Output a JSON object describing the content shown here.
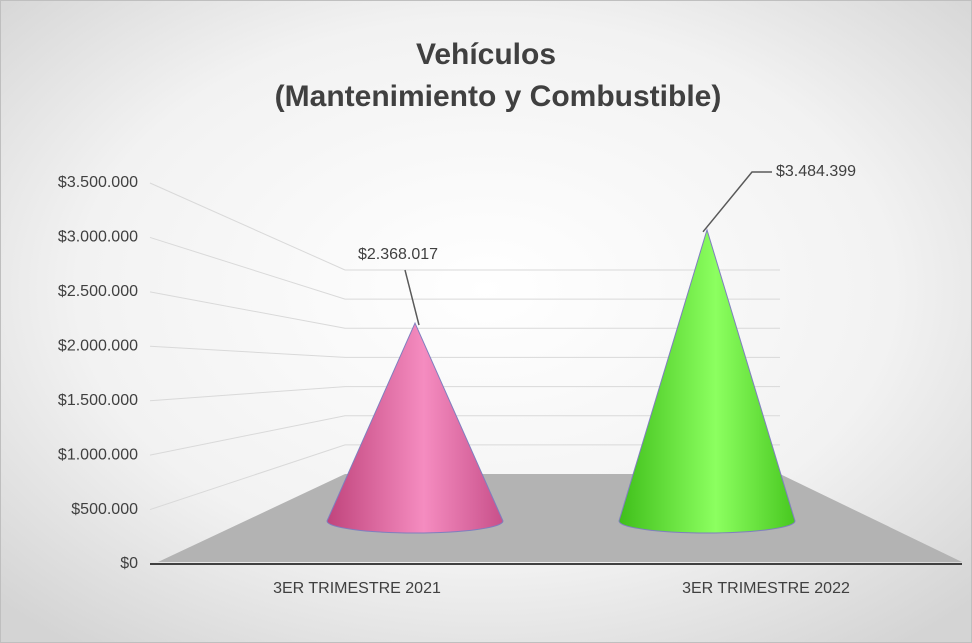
{
  "chart_data": {
    "type": "cone",
    "title": "Vehículos",
    "subtitle": "(Mantenimiento y Combustible)",
    "categories": [
      "3ER TRIMESTRE 2021",
      "3ER TRIMESTRE 2022"
    ],
    "values": [
      2368017,
      3484399
    ],
    "value_labels": [
      "$2.368.017",
      "$3.484.399"
    ],
    "colors": [
      "#f06aa8",
      "#66ee33"
    ],
    "ylim": [
      0,
      3500000
    ],
    "yticks": [
      {
        "value": 0,
        "label": "$0"
      },
      {
        "value": 500000,
        "label": "$500.000"
      },
      {
        "value": 1000000,
        "label": "$1.000.000"
      },
      {
        "value": 1500000,
        "label": "$1.500.000"
      },
      {
        "value": 2000000,
        "label": "$2.000.000"
      },
      {
        "value": 2500000,
        "label": "$2.500.000"
      },
      {
        "value": 3000000,
        "label": "$3.000.000"
      },
      {
        "value": 3500000,
        "label": "$3.500.000"
      }
    ],
    "grid": true
  }
}
